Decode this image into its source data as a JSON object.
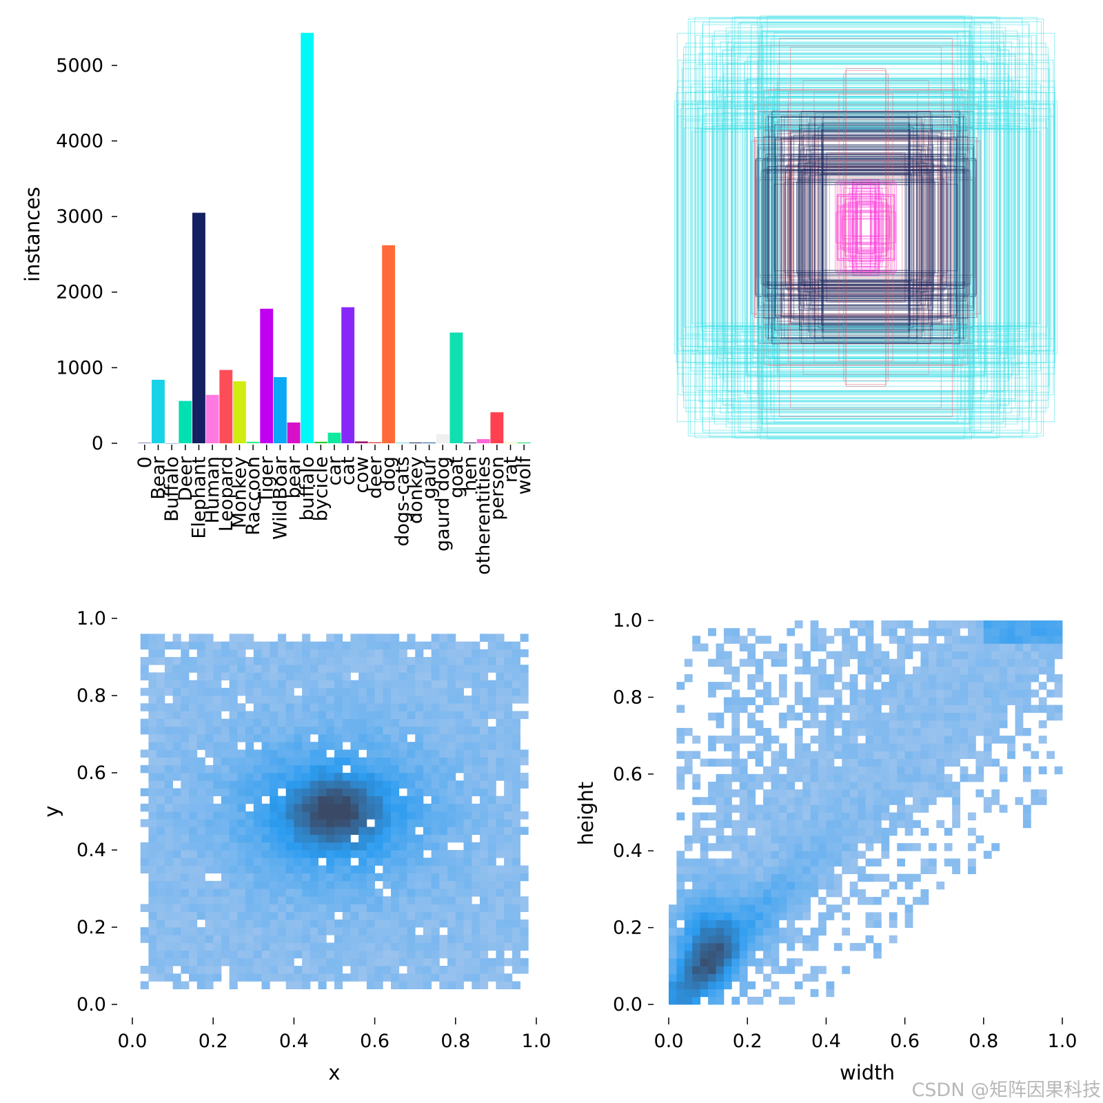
{
  "chart_data": [
    {
      "type": "bar",
      "panel": "top-left",
      "xlabel": "",
      "ylabel": "instances",
      "ylim": [
        0,
        5500
      ],
      "yticks": [
        0,
        1000,
        2000,
        3000,
        4000,
        5000
      ],
      "categories": [
        "0",
        "Bear",
        "Buffalo",
        "Deer",
        "Elephant",
        "Human",
        "Leopard",
        "Monkey",
        "Raccoon",
        "Tiger",
        "WildBoar",
        "bear",
        "buffalo",
        "bycicle",
        "car",
        "cat",
        "cow",
        "deer",
        "dog",
        "dogs-cats",
        "donkey",
        "gaur",
        "gaurd dog",
        "goat",
        "hen",
        "otherentities",
        "person",
        "rat",
        "wolf"
      ],
      "values": [
        5,
        840,
        0,
        560,
        3050,
        640,
        970,
        820,
        20,
        1780,
        875,
        275,
        5430,
        20,
        140,
        1800,
        25,
        15,
        2620,
        5,
        10,
        10,
        120,
        1465,
        10,
        55,
        410,
        5,
        10
      ],
      "colors": [
        "#1a237e",
        "#18d2e6",
        "#5b6fd6",
        "#00e0b0",
        "#142061",
        "#ff7ae0",
        "#ff4d58",
        "#d0ec10",
        "#2ef080",
        "#c000f0",
        "#0aa8f5",
        "#d810c8",
        "#00f8f8",
        "#2cc82c",
        "#10e8a0",
        "#8828f8",
        "#9c1a6a",
        "#e06060",
        "#ff6a38",
        "#00b8b8",
        "#203060",
        "#2060a8",
        "#f0f0f0",
        "#10e0b0",
        "#2a2a5a",
        "#ff68d8",
        "#ff4050",
        "#f0f040",
        "#20d870"
      ]
    },
    {
      "type": "box-overlay",
      "panel": "top-right",
      "title": "",
      "colors": [
        "#40e0e8",
        "#1e2a60",
        "#ff40d8",
        "#e86070"
      ]
    },
    {
      "type": "heatmap",
      "panel": "bottom-left",
      "xlabel": "x",
      "ylabel": "y",
      "xlim": [
        0,
        1
      ],
      "ylim": [
        0,
        1
      ],
      "xticks": [
        "0.0",
        "0.2",
        "0.4",
        "0.6",
        "0.8",
        "1.0"
      ],
      "yticks": [
        "0.0",
        "0.2",
        "0.4",
        "0.6",
        "0.8",
        "1.0"
      ],
      "peak": [
        0.5,
        0.5
      ],
      "colors": [
        "#aac8ee",
        "#2c9cf0",
        "#3a4a66"
      ]
    },
    {
      "type": "heatmap",
      "panel": "bottom-right",
      "xlabel": "width",
      "ylabel": "height",
      "xlim": [
        0,
        1
      ],
      "ylim": [
        0,
        1
      ],
      "xticks": [
        "0.0",
        "0.2",
        "0.4",
        "0.6",
        "0.8",
        "1.0"
      ],
      "yticks": [
        "0.0",
        "0.2",
        "0.4",
        "0.6",
        "0.8",
        "1.0"
      ],
      "peak": [
        0.1,
        0.15
      ],
      "colors": [
        "#aac8ee",
        "#2c9cf0",
        "#3a4a66"
      ]
    }
  ],
  "watermark": "CSDN @矩阵因果科技"
}
